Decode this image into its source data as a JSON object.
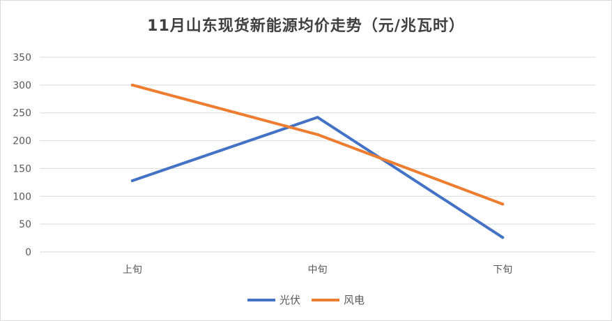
{
  "chart_data": {
    "type": "line",
    "title": "11月山东现货新能源均价走势（元/兆瓦时）",
    "categories": [
      "上旬",
      "中旬",
      "下旬"
    ],
    "series": [
      {
        "name": "光伏",
        "values": [
          128,
          242,
          26
        ],
        "color": "#4472C4"
      },
      {
        "name": "风电",
        "values": [
          300,
          211,
          86
        ],
        "color": "#ED7D31"
      }
    ],
    "ylim": [
      0,
      350
    ],
    "yticks": [
      0,
      50,
      100,
      150,
      200,
      250,
      300,
      350
    ],
    "xlabel": "",
    "ylabel": "",
    "grid": true,
    "legend": "bottom"
  }
}
